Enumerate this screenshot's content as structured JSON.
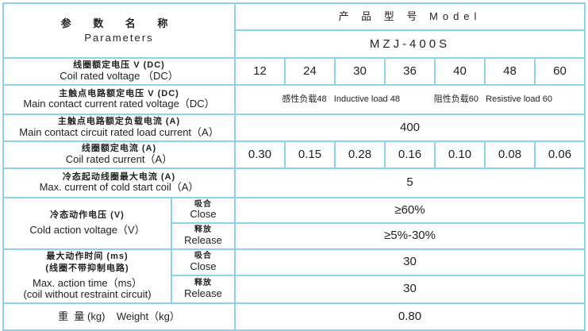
{
  "header": {
    "param_cn": "参 数 名 称",
    "param_en": "Parameters",
    "model_label": "产 品 型 号  Model",
    "model_no": "MZJ-400S"
  },
  "rows": {
    "coil_voltage": {
      "cn": "线圈额定电压 V (DC)",
      "en": "Coil rated voltage （DC）",
      "values": [
        "12",
        "24",
        "30",
        "36",
        "40",
        "48",
        "60"
      ]
    },
    "contact_voltage": {
      "cn": "主触点电路额定电压 V (DC)",
      "en": "Main contact current rated voltage（DC）",
      "value_inductive": "感性负载48   Inductive load 48",
      "value_resistive": "阻性负载60   Resistive load 60"
    },
    "load_current": {
      "cn": "主触点电路额定负载电流 (A)",
      "en": "Main contact circuit rated load current（A）",
      "value": "400"
    },
    "coil_current": {
      "cn": "线圈额定电流 (A)",
      "en": "Coil rated current（A）",
      "values": [
        "0.30",
        "0.15",
        "0.28",
        "0.16",
        "0.10",
        "0.08",
        "0.06"
      ]
    },
    "cold_start": {
      "cn": "冷态起动线圈最大电流 (A)",
      "en": "Max. current of cold start coil（A）",
      "value": "5"
    },
    "cold_action": {
      "cn": "冷态动作电压 (V)",
      "en": "Cold action voltage（V）",
      "close_cn": "吸合",
      "close_en": "Close",
      "close_value": "≥60%",
      "release_cn": "释放",
      "release_en": "Release",
      "release_value": "≥5%-30%"
    },
    "action_time": {
      "cn": "最大动作时间 (ms)",
      "cn2": "(线圈不带抑制电路)",
      "en": "Max. action time（ms）",
      "en2": "(coil without restraint circuit)",
      "close_cn": "吸合",
      "close_en": "Close",
      "close_value": "30",
      "release_cn": "释放",
      "release_en": "Release",
      "release_value": "30"
    },
    "weight": {
      "label": "重  量 (kg)    Weight（kg）",
      "value": "0.80"
    }
  }
}
